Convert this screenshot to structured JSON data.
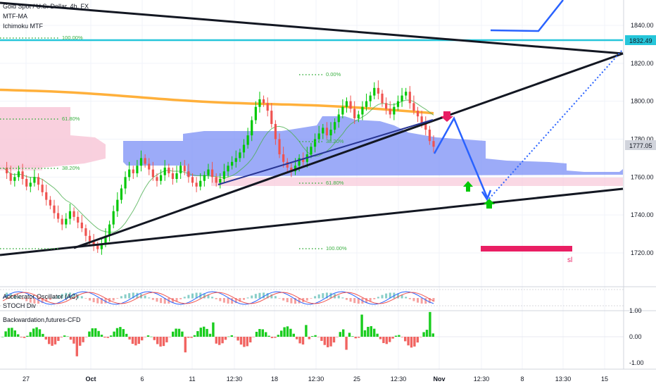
{
  "chart_data": {
    "type": "candlestick",
    "symbol_title": "Gold Spot / U.S. Dollar, 4h, FX",
    "indicator_labels": [
      "MTF-MA",
      "Ichimoku MTF"
    ],
    "price_axis": {
      "ticks": [
        "1840.00",
        "1820.00",
        "1800.00",
        "1780.00",
        "1760.00",
        "1740.00",
        "1720.00"
      ],
      "tick_values": [
        1840,
        1820,
        1800,
        1780,
        1760,
        1740,
        1720
      ],
      "range": [
        1710,
        1850
      ],
      "current_price": "1777.05",
      "marked_price": "1832.49"
    },
    "time_axis": {
      "labels": [
        "27",
        "Oct",
        "6",
        "11",
        "12:30",
        "18",
        "12:30",
        "25",
        "12:30",
        "Nov",
        "12:30",
        "8",
        "13:30",
        "15"
      ]
    },
    "fib_labels": {
      "top": "100.00%",
      "left_618": "61.80%",
      "left_382": "38.20%",
      "right_0": "0.00%",
      "right_382": "38.20%",
      "right_618": "61.80%",
      "right_100": "100.00%"
    },
    "annotation_sl": "sl",
    "osc_panel": {
      "labels": [
        "Accelerator Oscillator (AC)",
        "STOCH Div"
      ]
    },
    "back_panel": {
      "label": "Backwardation,futures-CFD",
      "ticks": [
        "1.00",
        "0.00",
        "-1.00"
      ],
      "tick_values": [
        1,
        0,
        -1
      ]
    },
    "colors": {
      "up": "#26a69a",
      "up_bright": "#00c805",
      "down": "#ef5350",
      "fib": "#3cb043",
      "cyan": "#26c6da",
      "blue": "#2962ff",
      "kumo": "#7b8ff5",
      "kumo_pink": "#f8c8d8",
      "sl": "#e91e63",
      "orange": "#ffa726"
    },
    "series_price": [
      1765,
      1762,
      1758,
      1760,
      1763,
      1759,
      1755,
      1757,
      1760,
      1756,
      1752,
      1748,
      1745,
      1741,
      1738,
      1735,
      1738,
      1742,
      1739,
      1736,
      1733,
      1729,
      1726,
      1724,
      1722,
      1725,
      1729,
      1735,
      1742,
      1748,
      1754,
      1760,
      1764,
      1762,
      1766,
      1770,
      1767,
      1764,
      1760,
      1758,
      1761,
      1765,
      1762,
      1759,
      1762,
      1766,
      1763,
      1760,
      1757,
      1755,
      1758,
      1761,
      1764,
      1760,
      1757,
      1759,
      1763,
      1766,
      1768,
      1770,
      1773,
      1777,
      1782,
      1790,
      1797,
      1801,
      1799,
      1795,
      1788,
      1780,
      1772,
      1768,
      1765,
      1763,
      1766,
      1770,
      1768,
      1772,
      1776,
      1780,
      1783,
      1786,
      1782,
      1785,
      1789,
      1793,
      1797,
      1800,
      1796,
      1791,
      1793,
      1797,
      1800,
      1803,
      1807,
      1804,
      1799,
      1796,
      1793,
      1797,
      1800,
      1803,
      1805,
      1799,
      1795,
      1792,
      1788,
      1785,
      1779,
      1776
    ]
  }
}
